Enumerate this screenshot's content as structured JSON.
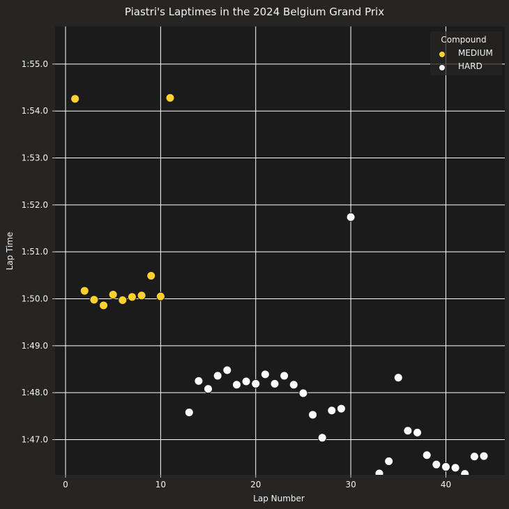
{
  "chart_data": {
    "type": "scatter",
    "title": "Piastri's Laptimes in the 2024 Belgium Grand Prix",
    "xlabel": "Lap Number",
    "ylabel": "Lap Time",
    "xlim": [
      -1.1,
      46.2
    ],
    "ylim": [
      106.25,
      115.8
    ],
    "x_ticks": [
      0,
      10,
      20,
      30,
      40
    ],
    "x_tick_labels": [
      "0",
      "10",
      "20",
      "30",
      "40"
    ],
    "y_ticks": [
      107,
      108,
      109,
      110,
      111,
      112,
      113,
      114,
      115
    ],
    "y_tick_labels": [
      "1:47.0",
      "1:48.0",
      "1:49.0",
      "1:50.0",
      "1:51.0",
      "1:52.0",
      "1:53.0",
      "1:54.0",
      "1:55.0"
    ],
    "grid": true,
    "legend": {
      "title": "Compound",
      "position": "top-right"
    },
    "series": [
      {
        "name": "MEDIUM",
        "color": "#ffd12e",
        "points": [
          {
            "x": 1,
            "y": 114.26
          },
          {
            "x": 2,
            "y": 110.17
          },
          {
            "x": 3,
            "y": 109.98
          },
          {
            "x": 4,
            "y": 109.86
          },
          {
            "x": 5,
            "y": 110.09
          },
          {
            "x": 6,
            "y": 109.97
          },
          {
            "x": 7,
            "y": 110.04
          },
          {
            "x": 8,
            "y": 110.07
          },
          {
            "x": 9,
            "y": 110.49
          },
          {
            "x": 10,
            "y": 110.05
          },
          {
            "x": 11,
            "y": 114.28
          }
        ]
      },
      {
        "name": "HARD",
        "color": "#ffffff",
        "points": [
          {
            "x": 13,
            "y": 107.58
          },
          {
            "x": 14,
            "y": 108.25
          },
          {
            "x": 15,
            "y": 108.08
          },
          {
            "x": 16,
            "y": 108.36
          },
          {
            "x": 17,
            "y": 108.48
          },
          {
            "x": 18,
            "y": 108.17
          },
          {
            "x": 19,
            "y": 108.24
          },
          {
            "x": 20,
            "y": 108.19
          },
          {
            "x": 21,
            "y": 108.39
          },
          {
            "x": 22,
            "y": 108.19
          },
          {
            "x": 23,
            "y": 108.36
          },
          {
            "x": 24,
            "y": 108.17
          },
          {
            "x": 25,
            "y": 107.99
          },
          {
            "x": 26,
            "y": 107.53
          },
          {
            "x": 27,
            "y": 107.04
          },
          {
            "x": 28,
            "y": 107.62
          },
          {
            "x": 29,
            "y": 107.66
          },
          {
            "x": 30,
            "y": 111.74
          },
          {
            "x": 33,
            "y": 106.28
          },
          {
            "x": 34,
            "y": 106.54
          },
          {
            "x": 35,
            "y": 108.32
          },
          {
            "x": 36,
            "y": 107.19
          },
          {
            "x": 37,
            "y": 107.15
          },
          {
            "x": 38,
            "y": 106.67
          },
          {
            "x": 39,
            "y": 106.47
          },
          {
            "x": 40,
            "y": 106.42
          },
          {
            "x": 41,
            "y": 106.4
          },
          {
            "x": 42,
            "y": 106.27
          },
          {
            "x": 43,
            "y": 106.64
          },
          {
            "x": 44,
            "y": 106.65
          }
        ]
      }
    ]
  }
}
